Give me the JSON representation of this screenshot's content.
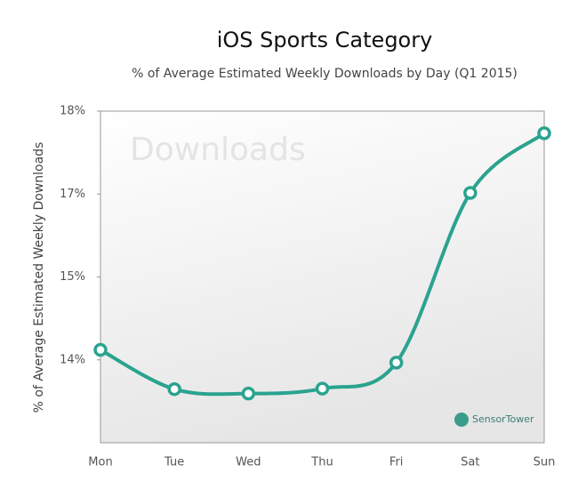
{
  "chart_data": {
    "type": "line",
    "title": "iOS Sports Category",
    "subtitle": "% of Average Estimated Weekly Downloads by Day (Q1 2015)",
    "y_label": "% of Average Estimated Weekly Downloads",
    "watermark": "Downloads",
    "logo": "SensorTower",
    "categories": [
      "Mon",
      "Tue",
      "Wed",
      "Thu",
      "Fri",
      "Sat",
      "Sun"
    ],
    "series": [
      {
        "name": "Downloads",
        "color": "#2aa38f",
        "values": [
          13.68,
          12.97,
          12.89,
          12.98,
          13.45,
          16.52,
          17.6
        ]
      }
    ],
    "ylim": [
      12,
      18
    ],
    "yticks": [
      {
        "value": 13.5,
        "label": "14%"
      },
      {
        "value": 15,
        "label": "15%"
      },
      {
        "value": 16.5,
        "label": "17%"
      },
      {
        "value": 18,
        "label": "18%"
      }
    ],
    "grid": false
  }
}
